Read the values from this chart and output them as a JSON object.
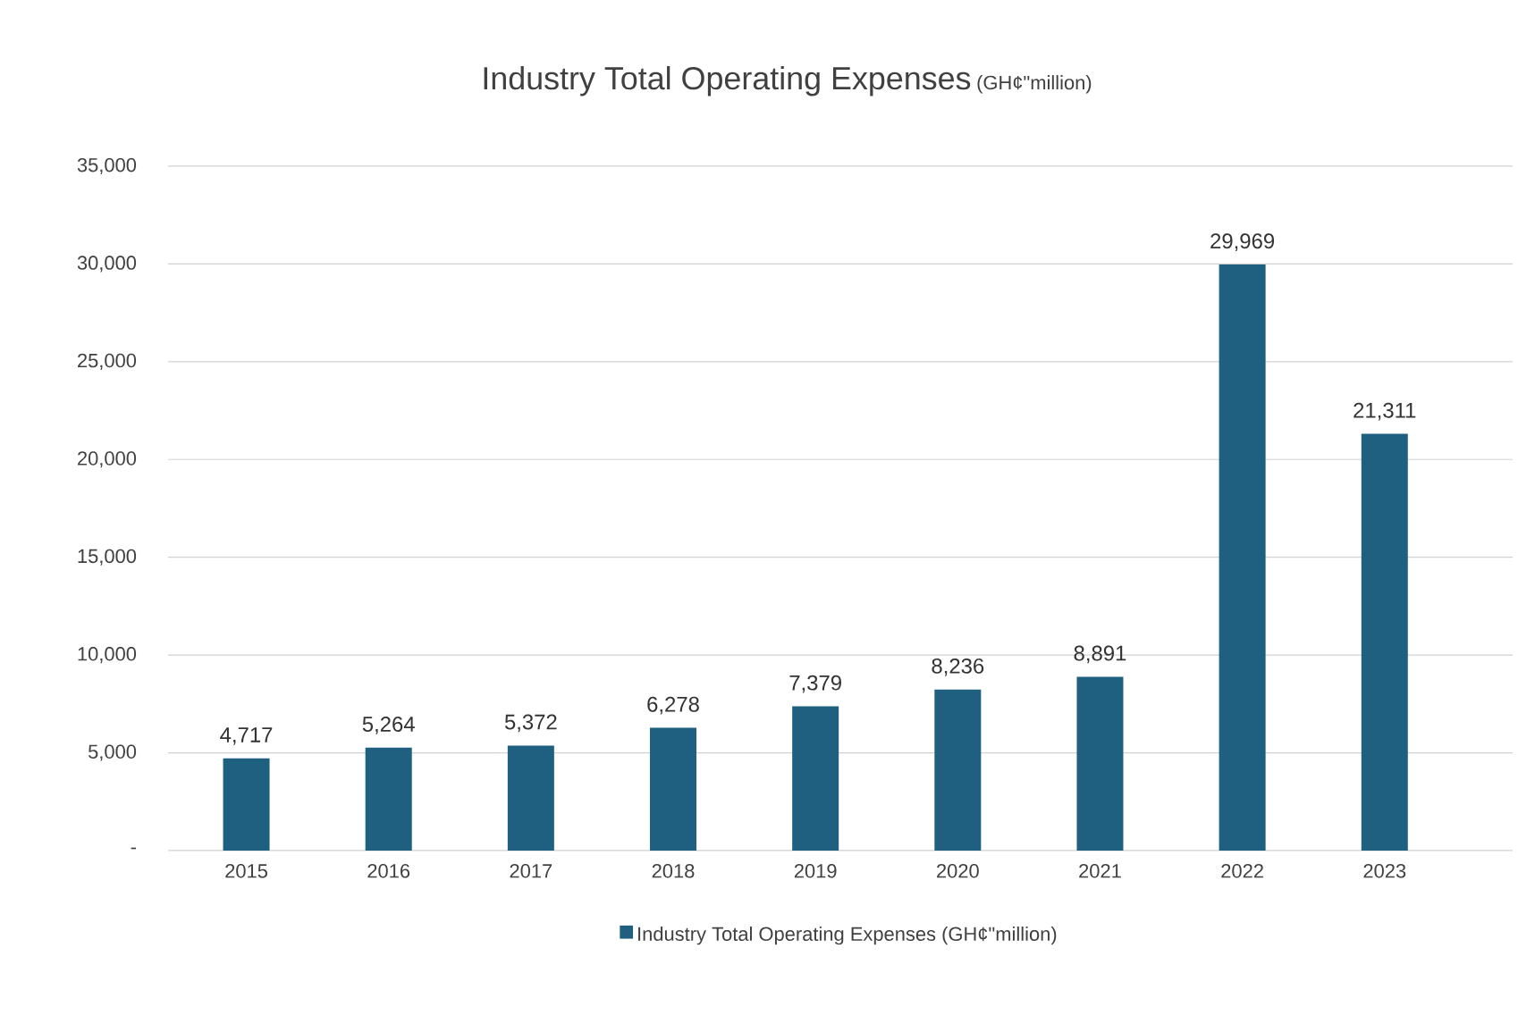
{
  "chart_data": {
    "type": "bar",
    "title": "Industry Total Operating Expenses",
    "subtitle": "(GH¢\"million)",
    "categories": [
      "2015",
      "2016",
      "2017",
      "2018",
      "2019",
      "2020",
      "2021",
      "2022",
      "2023"
    ],
    "series": [
      {
        "name": "Industry Total Operating Expenses (GH¢\"million)",
        "color": "#1f5f80",
        "values": [
          4717,
          5264,
          5372,
          6278,
          7379,
          8236,
          8891,
          29969,
          21311
        ],
        "value_labels": [
          "4,717",
          "5,264",
          "5,372",
          "6,278",
          "7,379",
          "8,236",
          "8,891",
          "29,969",
          "21,311"
        ]
      }
    ],
    "ylim": [
      0,
      35000
    ],
    "yticks": [
      {
        "value": 0,
        "label": "-"
      },
      {
        "value": 5000,
        "label": "5,000"
      },
      {
        "value": 10000,
        "label": "10,000"
      },
      {
        "value": 15000,
        "label": "15,000"
      },
      {
        "value": 20000,
        "label": "20,000"
      },
      {
        "value": 25000,
        "label": "25,000"
      },
      {
        "value": 30000,
        "label": "30,000"
      },
      {
        "value": 35000,
        "label": "35,000"
      }
    ],
    "grid": "y",
    "legend": "bottom"
  }
}
